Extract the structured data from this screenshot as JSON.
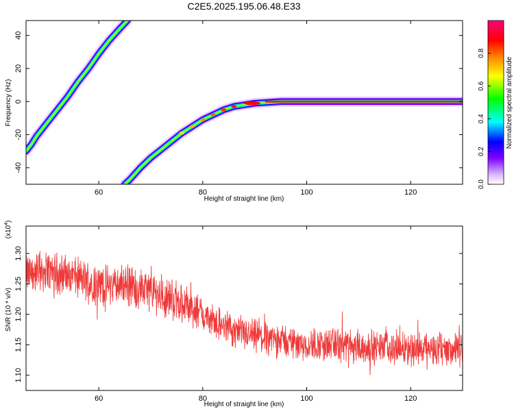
{
  "title": "C2E5.2025.195.06.48.E33",
  "chart_data": [
    {
      "type": "heatmap",
      "xlabel": "Height of straight line (km)",
      "ylabel": "Frequency (Hz)",
      "xlim": [
        46,
        130
      ],
      "ylim": [
        -50,
        49
      ],
      "x_ticks": [
        60,
        80,
        100,
        120
      ],
      "y_ticks": [
        -40,
        -20,
        0,
        20,
        40
      ],
      "tracks": [
        {
          "x": [
            46,
            47,
            48,
            50,
            52,
            54,
            56,
            58,
            60,
            62,
            64,
            65.5
          ],
          "y": [
            -30,
            -26,
            -21,
            -13,
            -5,
            3,
            12,
            20,
            29,
            37,
            44,
            49
          ]
        },
        {
          "x": [
            65,
            66,
            68,
            70,
            72,
            74,
            76,
            78,
            80,
            82,
            84,
            86,
            88,
            90,
            95,
            100,
            110,
            120,
            130
          ],
          "y": [
            -50,
            -47,
            -40,
            -34,
            -29,
            -24,
            -19,
            -15,
            -11,
            -8,
            -5,
            -3,
            -2,
            -1,
            0,
            0,
            0,
            0,
            0
          ]
        }
      ],
      "colorbar": {
        "label": "Normalized spectral amplitude",
        "range": [
          0.0,
          1.0
        ],
        "ticks": [
          0.0,
          0.2,
          0.4,
          0.6,
          0.8
        ],
        "tick_labels": [
          "0.0",
          "0.2",
          "0.4",
          "0.6",
          "0.8"
        ],
        "colors": [
          "#ffffff",
          "#8000ff",
          "#0000ff",
          "#00ffff",
          "#00ff00",
          "#ffff00",
          "#ff8000",
          "#ff0000",
          "#ff0080"
        ]
      }
    },
    {
      "type": "line",
      "xlabel": "Height of straight line (km)",
      "ylabel": "SNR (10 * v/v)",
      "y_multiplier": "(x10",
      "y_multiplier_exp": "4",
      "y_multiplier_close": ")",
      "xlim": [
        46,
        130
      ],
      "ylim": [
        1.075,
        1.345
      ],
      "x_ticks": [
        60,
        80,
        100,
        120
      ],
      "y_ticks": [
        1.1,
        1.15,
        1.2,
        1.25,
        1.3
      ],
      "y_tick_labels": [
        "1.10",
        "1.15",
        "1.20",
        "1.25",
        "1.30"
      ],
      "color": "#ef3a3a",
      "series": [
        {
          "x": [
            46,
            50,
            55,
            60,
            65,
            70,
            75,
            80,
            85,
            90,
            95,
            100,
            105,
            110,
            115,
            120,
            125,
            130
          ],
          "y": [
            1.265,
            1.272,
            1.262,
            1.248,
            1.248,
            1.238,
            1.222,
            1.198,
            1.175,
            1.163,
            1.158,
            1.15,
            1.15,
            1.146,
            1.145,
            1.144,
            1.143,
            1.142
          ]
        }
      ]
    }
  ]
}
